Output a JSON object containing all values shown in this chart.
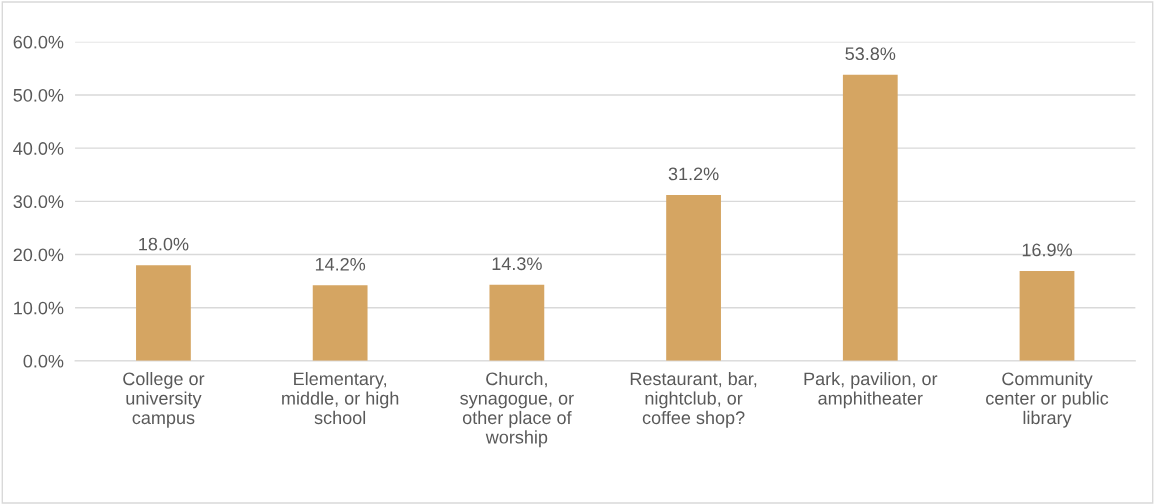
{
  "chart_data": {
    "type": "bar",
    "categories": [
      "College or\nuniversity\ncampus",
      "Elementary,\nmiddle, or high\nschool",
      "Church,\nsynagogue, or\nother place of\nworship",
      "Restaurant, bar,\nnightclub, or\ncoffee shop?",
      "Park, pavilion, or\namphitheater",
      "Community\ncenter or public\nlibrary"
    ],
    "values": [
      18.0,
      14.2,
      14.3,
      31.2,
      53.8,
      16.9
    ],
    "value_labels": [
      "18.0%",
      "14.2%",
      "14.3%",
      "31.2%",
      "53.8%",
      "16.9%"
    ],
    "color": "#d5a562",
    "ylim": [
      0,
      60
    ],
    "yticks": [
      {
        "value": 0,
        "label": "0.0%"
      },
      {
        "value": 10,
        "label": "10.0%"
      },
      {
        "value": 20,
        "label": "20.0%"
      },
      {
        "value": 30,
        "label": "30.0%"
      },
      {
        "value": 40,
        "label": "40.0%"
      },
      {
        "value": 50,
        "label": "50.0%"
      },
      {
        "value": 60,
        "label": "60.0%"
      }
    ],
    "grid": "y"
  }
}
